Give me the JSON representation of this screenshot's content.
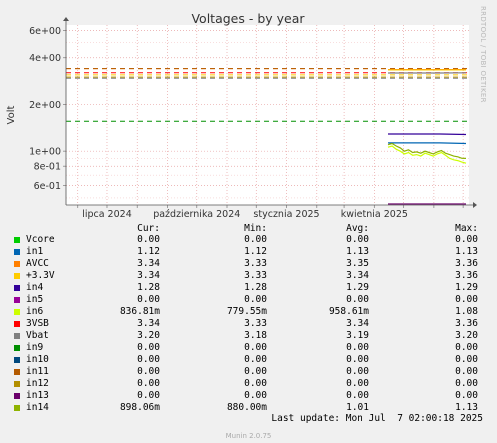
{
  "side_text": "RRDTOOL / TOBI OETIKER",
  "legend": {
    "headers": [
      "Cur:",
      "Min:",
      "Avg:",
      "Max:"
    ],
    "rows": [
      {
        "name": "Vcore",
        "color": "#00cc00",
        "cur": "0.00",
        "min": "0.00",
        "avg": "0.00",
        "max": "0.00"
      },
      {
        "name": "in1",
        "color": "#0066b3",
        "cur": "1.12",
        "min": "1.12",
        "avg": "1.13",
        "max": "1.13"
      },
      {
        "name": "AVCC",
        "color": "#ff8000",
        "cur": "3.34",
        "min": "3.33",
        "avg": "3.35",
        "max": "3.36"
      },
      {
        "name": "+3.3V",
        "color": "#ffcc00",
        "cur": "3.34",
        "min": "3.33",
        "avg": "3.34",
        "max": "3.36"
      },
      {
        "name": "in4",
        "color": "#330099",
        "cur": "1.28",
        "min": "1.28",
        "avg": "1.29",
        "max": "1.29"
      },
      {
        "name": "in5",
        "color": "#990099",
        "cur": "0.00",
        "min": "0.00",
        "avg": "0.00",
        "max": "0.00"
      },
      {
        "name": "in6",
        "color": "#ccff00",
        "cur": "836.81m",
        "min": "779.55m",
        "avg": "958.61m",
        "max": "1.08"
      },
      {
        "name": "3VSB",
        "color": "#ff0000",
        "cur": "3.34",
        "min": "3.33",
        "avg": "3.34",
        "max": "3.36"
      },
      {
        "name": "Vbat",
        "color": "#808080",
        "cur": "3.20",
        "min": "3.18",
        "avg": "3.19",
        "max": "3.20"
      },
      {
        "name": "in9",
        "color": "#008f00",
        "cur": "0.00",
        "min": "0.00",
        "avg": "0.00",
        "max": "0.00"
      },
      {
        "name": "in10",
        "color": "#00487d",
        "cur": "0.00",
        "min": "0.00",
        "avg": "0.00",
        "max": "0.00"
      },
      {
        "name": "in11",
        "color": "#b35a00",
        "cur": "0.00",
        "min": "0.00",
        "avg": "0.00",
        "max": "0.00"
      },
      {
        "name": "in12",
        "color": "#b38f00",
        "cur": "0.00",
        "min": "0.00",
        "avg": "0.00",
        "max": "0.00"
      },
      {
        "name": "in13",
        "color": "#6b006b",
        "cur": "0.00",
        "min": "0.00",
        "avg": "0.00",
        "max": "0.00"
      },
      {
        "name": "in14",
        "color": "#8fb300",
        "cur": "898.06m",
        "min": "880.00m",
        "avg": "1.01",
        "max": "1.13"
      }
    ]
  },
  "last_update": "Last update: Mon Jul  7 02:00:18 2025",
  "munin_version": "Munin 2.0.75",
  "chart_data": {
    "type": "line",
    "title": "Voltages - by year",
    "ylabel": "Volt",
    "yscale": "log",
    "ylim": [
      0.45,
      6.5
    ],
    "y_ticks": [
      0.6,
      0.8,
      1,
      2,
      4,
      6
    ],
    "y_tick_labels": [
      "6e-01",
      "8e-01",
      "1e+00",
      "2e+00",
      "4e+00",
      "6e+00"
    ],
    "x_range": [
      "2024-05-20",
      "2025-07-07"
    ],
    "x_tick_dates": [
      "2024-06-01",
      "2024-07-01",
      "2024-08-01",
      "2024-09-01",
      "2024-10-01",
      "2024-11-01",
      "2024-12-01",
      "2025-01-01",
      "2025-02-01",
      "2025-03-01",
      "2025-04-01",
      "2025-05-01",
      "2025-06-01",
      "2025-07-01"
    ],
    "x_labels": [
      {
        "date": "2024-07-01",
        "text": "lipca 2024"
      },
      {
        "date": "2024-10-01",
        "text": "października 2024"
      },
      {
        "date": "2025-01-01",
        "text": "stycznia 2025"
      },
      {
        "date": "2025-04-01",
        "text": "kwietnia 2025"
      }
    ],
    "data_start": "2025-04-15",
    "dashed_lines": [
      {
        "name": "AVCC warning",
        "color": "#ff8000",
        "value": 3.4
      },
      {
        "name": "AVCC critical",
        "color": "#b35a00",
        "value": 3.4
      },
      {
        "name": "+3.3V warning",
        "color": "#ffcc00",
        "value": 3.1
      },
      {
        "name": "+3.3V critical",
        "color": "#b38f00",
        "value": 3.0
      },
      {
        "name": "3VSB warning",
        "color": "#ff0000",
        "value": 3.2
      },
      {
        "name": "Vbat warning",
        "color": "#808080",
        "value": 2.95
      },
      {
        "name": "in1 warning",
        "color": "#008f00",
        "value": 1.56
      }
    ],
    "series": [
      {
        "name": "AVCC",
        "color": "#ff8000",
        "values": [
          3.35,
          3.35,
          3.35,
          3.35
        ]
      },
      {
        "name": "3VSB",
        "color": "#ff0000",
        "values": [
          3.34,
          3.34,
          3.34,
          3.34
        ]
      },
      {
        "name": "+3.3V",
        "color": "#ffcc00",
        "values": [
          3.34,
          3.34,
          3.34,
          3.34
        ]
      },
      {
        "name": "Vbat",
        "color": "#808080",
        "values": [
          3.19,
          3.19,
          3.19,
          3.2
        ]
      },
      {
        "name": "in4",
        "color": "#330099",
        "values": [
          1.29,
          1.29,
          1.29,
          1.28
        ]
      },
      {
        "name": "in1",
        "color": "#0066b3",
        "values": [
          1.13,
          1.13,
          1.13,
          1.12
        ]
      },
      {
        "name": "in14",
        "color": "#8fb300",
        "values": [
          1.1,
          1.12,
          1.08,
          1.05,
          1.0,
          1.02,
          0.98,
          0.99,
          0.97,
          1.0,
          0.98,
          0.96,
          0.99,
          1.01,
          0.97,
          0.95,
          0.93,
          0.92,
          0.9,
          0.898
        ]
      },
      {
        "name": "in6",
        "color": "#ccff00",
        "values": [
          1.06,
          1.08,
          1.03,
          1.0,
          0.96,
          0.98,
          0.94,
          0.95,
          0.93,
          0.97,
          0.95,
          0.93,
          0.96,
          0.98,
          0.94,
          0.9,
          0.88,
          0.87,
          0.85,
          0.837
        ]
      },
      {
        "name": "in13",
        "color": "#6b006b",
        "values": [
          0.0,
          0.0,
          0.0,
          0.0
        ]
      }
    ]
  }
}
